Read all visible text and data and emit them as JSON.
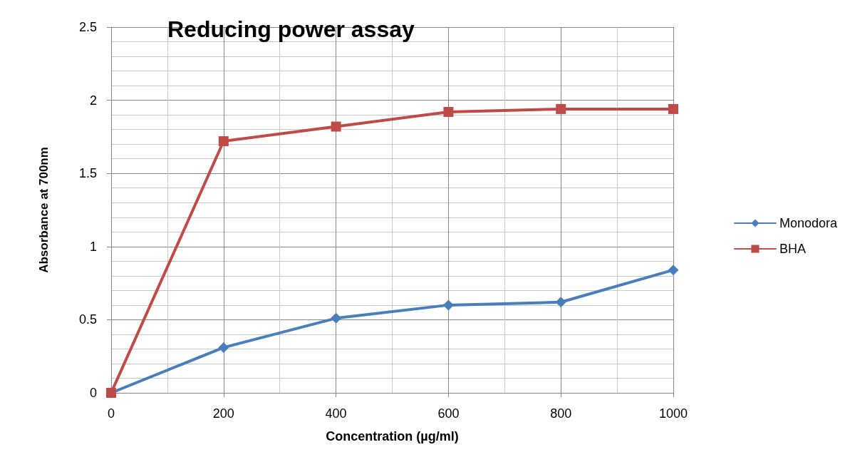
{
  "chart_data": {
    "type": "line",
    "title": "Reducing power assay",
    "xlabel": "Concentration (µg/ml)",
    "ylabel": "Absorbance at 700nm",
    "x": [
      0,
      200,
      400,
      600,
      800,
      1000
    ],
    "series": [
      {
        "name": "Monodora",
        "color": "#4a7ebb",
        "marker": "diamond",
        "values": [
          0,
          0.31,
          0.51,
          0.6,
          0.62,
          0.84
        ]
      },
      {
        "name": "BHA",
        "color": "#be4b48",
        "marker": "square",
        "values": [
          0,
          1.72,
          1.82,
          1.92,
          1.94,
          1.94
        ]
      }
    ],
    "xlim": [
      0,
      1000
    ],
    "xticks": [
      0,
      200,
      400,
      600,
      800,
      1000
    ],
    "ylim": [
      0,
      2.5
    ],
    "yticks": [
      0,
      0.5,
      1,
      1.5,
      2,
      2.5
    ],
    "grid": true,
    "legend": "right",
    "line_style": "solid"
  }
}
